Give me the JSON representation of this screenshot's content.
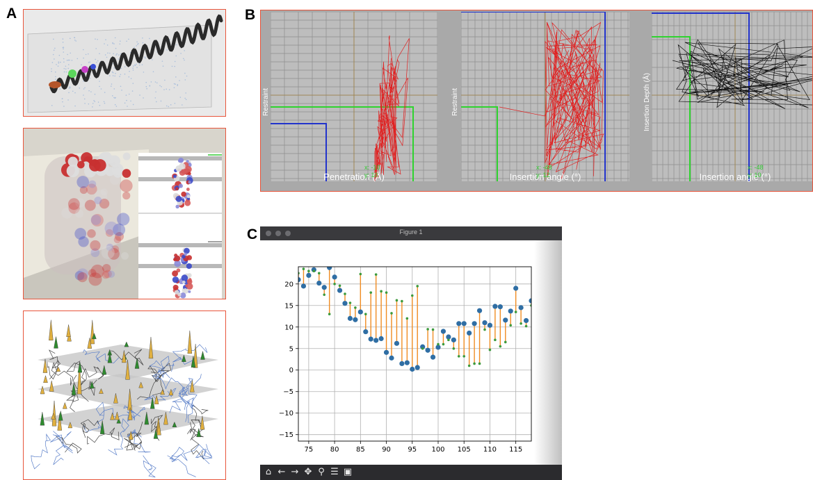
{
  "panels": {
    "a": "A",
    "b": "B",
    "c": "C"
  },
  "panel_b": {
    "sub1": {
      "xlabel": "Penetration (Å)",
      "ylabel": "Restraint",
      "readout_x": "x: -10",
      "readout_y": "y: 10"
    },
    "sub2": {
      "xlabel": "Insertion angle (°)",
      "ylabel": "Restraint",
      "readout_x": "x: -48",
      "readout_y": "y: 12"
    },
    "sub3": {
      "xlabel": "Insertion angle (°)",
      "ylabel": "Insertion Depth (Å)",
      "readout_x": "x: -48",
      "readout_y": "y: 10"
    }
  },
  "window": {
    "title": "Figure 1",
    "toolbar": [
      "home-icon",
      "back-icon",
      "forward-icon",
      "pan-icon",
      "zoom-icon",
      "configure-icon",
      "save-icon"
    ],
    "toolbar_glyphs": [
      "⌂",
      "←",
      "→",
      "✥",
      "⚲",
      "☰",
      "▣"
    ]
  },
  "colors": {
    "accent_frame": "#e8543a",
    "series_points": "#2f6ea4",
    "series_small": "#3c9a3c",
    "stems": "#f08c22"
  },
  "chart_data": {
    "type": "scatter",
    "x_ticks": [
      75,
      80,
      85,
      90,
      95,
      100,
      105,
      110,
      115
    ],
    "y_ticks": [
      20,
      15,
      10,
      5,
      0,
      -5,
      -10,
      -15
    ],
    "xlim": [
      73,
      118
    ],
    "ylim": [
      -16.5,
      24
    ],
    "grid": true,
    "series": [
      {
        "x": [
          73,
          74,
          75,
          76,
          77,
          78,
          79,
          80,
          81,
          82,
          83,
          84,
          85,
          86,
          87,
          88,
          89,
          90,
          91,
          92,
          93,
          94,
          95,
          96,
          97,
          98,
          99,
          100,
          101,
          102,
          103,
          104,
          105,
          106,
          107,
          108,
          109,
          110,
          111,
          112,
          113,
          114,
          115,
          116,
          117,
          118
        ],
        "values": [
          21,
          19.5,
          22,
          23.3,
          20.2,
          19.2,
          23.8,
          21.6,
          18.5,
          15.5,
          12,
          11.7,
          13.5,
          8.9,
          7.2,
          6.9,
          7.3,
          4.1,
          2.8,
          6.2,
          1.5,
          1.7,
          0.2,
          0.6,
          5.4,
          4.6,
          3,
          5.3,
          9,
          7.7,
          7,
          10.8,
          10.8,
          8.6,
          10.8,
          13.8,
          11,
          10.4,
          14.8,
          14.7,
          11.6,
          13.7,
          19,
          14.5,
          11.5,
          16.1
        ]
      },
      {
        "x": [
          73,
          74,
          75,
          76,
          77,
          78,
          79,
          80,
          81,
          82,
          83,
          84,
          85,
          86,
          87,
          88,
          89,
          90,
          91,
          92,
          93,
          94,
          95,
          96,
          97,
          98,
          99,
          100,
          101,
          102,
          103,
          104,
          105,
          106,
          107,
          108,
          109,
          110,
          111,
          112,
          113,
          114,
          115,
          116,
          117,
          118
        ],
        "values": [
          22.5,
          23.5,
          23,
          23,
          22.5,
          17.5,
          13,
          20,
          19.6,
          17.7,
          15.6,
          14.5,
          22.3,
          13,
          18,
          22.2,
          18.3,
          18,
          13.2,
          16.2,
          16,
          12,
          17.3,
          19.5,
          5,
          9.5,
          9.4,
          6,
          6,
          7,
          5,
          3.2,
          3.2,
          1,
          1.5,
          1.5,
          9.4,
          4.7,
          7,
          5.5,
          6.5,
          10.4,
          13.5,
          10.8,
          10.2,
          15
        ]
      }
    ]
  }
}
